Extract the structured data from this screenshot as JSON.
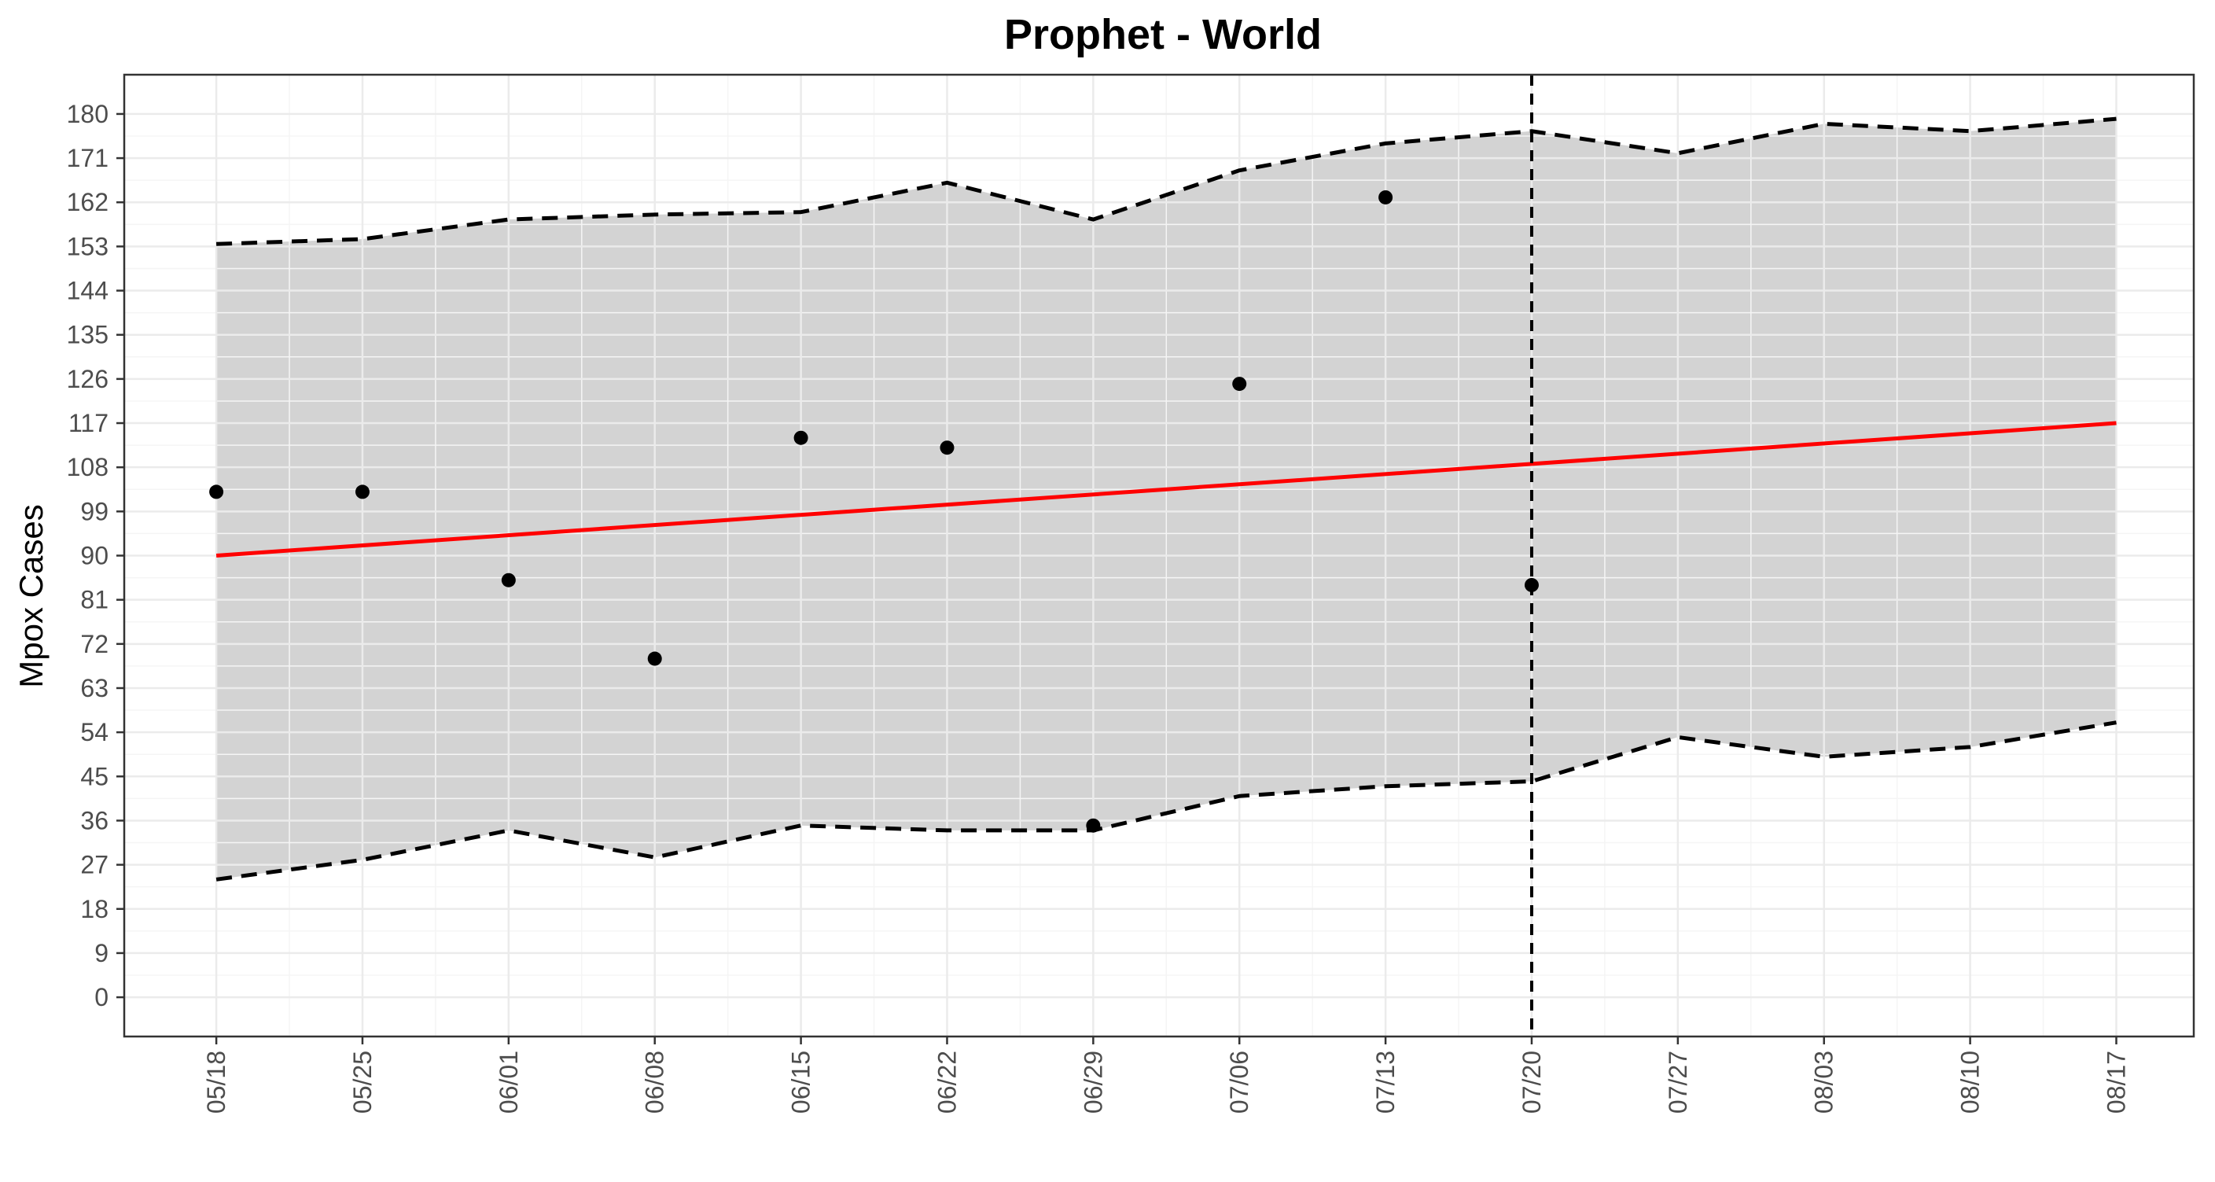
{
  "chart_data": {
    "type": "line",
    "title": "Prophet - World",
    "xlabel": "",
    "ylabel": "Mpox Cases",
    "x_ticks": [
      "05/18",
      "05/25",
      "06/01",
      "06/08",
      "06/15",
      "06/22",
      "06/29",
      "07/06",
      "07/13",
      "07/20",
      "07/27",
      "08/03",
      "08/10",
      "08/17"
    ],
    "y_ticks": [
      0,
      9,
      18,
      27,
      36,
      45,
      54,
      63,
      72,
      81,
      90,
      99,
      108,
      117,
      126,
      135,
      144,
      153,
      162,
      171,
      180
    ],
    "ylim": [
      -8,
      188
    ],
    "xlim": [
      -0.63,
      13.53
    ],
    "grid": true,
    "legend": "none",
    "forecast_start": "07/20",
    "forecast_start_index": 9,
    "series": [
      {
        "kind": "observed-points",
        "color": "#000000",
        "points": [
          {
            "x": "05/18",
            "xi": 0,
            "y": 103
          },
          {
            "x": "05/25",
            "xi": 1,
            "y": 103
          },
          {
            "x": "06/01",
            "xi": 2,
            "y": 85
          },
          {
            "x": "06/08",
            "xi": 3,
            "y": 69
          },
          {
            "x": "06/15",
            "xi": 4,
            "y": 114
          },
          {
            "x": "06/22",
            "xi": 5,
            "y": 112
          },
          {
            "x": "06/29",
            "xi": 6,
            "y": 35
          },
          {
            "x": "07/06",
            "xi": 7,
            "y": 125
          },
          {
            "x": "07/13",
            "xi": 8,
            "y": 163
          },
          {
            "x": "07/20",
            "xi": 9,
            "y": 84
          }
        ]
      },
      {
        "kind": "trend-line",
        "color": "#ff0000",
        "points": [
          {
            "x": "05/18",
            "xi": 0,
            "y": 90
          },
          {
            "x": "08/17",
            "xi": 13,
            "y": 117
          }
        ]
      },
      {
        "kind": "upper-bound",
        "color": "#000000",
        "values": [
          153.5,
          154.5,
          158.5,
          159.5,
          160,
          166,
          158.5,
          168.5,
          174,
          176.5,
          172,
          178,
          176.5,
          179
        ]
      },
      {
        "kind": "lower-bound",
        "color": "#000000",
        "values": [
          24,
          28,
          34,
          28.5,
          35,
          34,
          34,
          41,
          43,
          44,
          53,
          49,
          51,
          56
        ]
      }
    ],
    "colors": {
      "interval_fill": "#d3d3d3",
      "grid_major": "#ebebeb",
      "grid_minor": "#f5f5f5",
      "panel_border": "#333333",
      "tick_text": "#4d4d4d"
    }
  }
}
